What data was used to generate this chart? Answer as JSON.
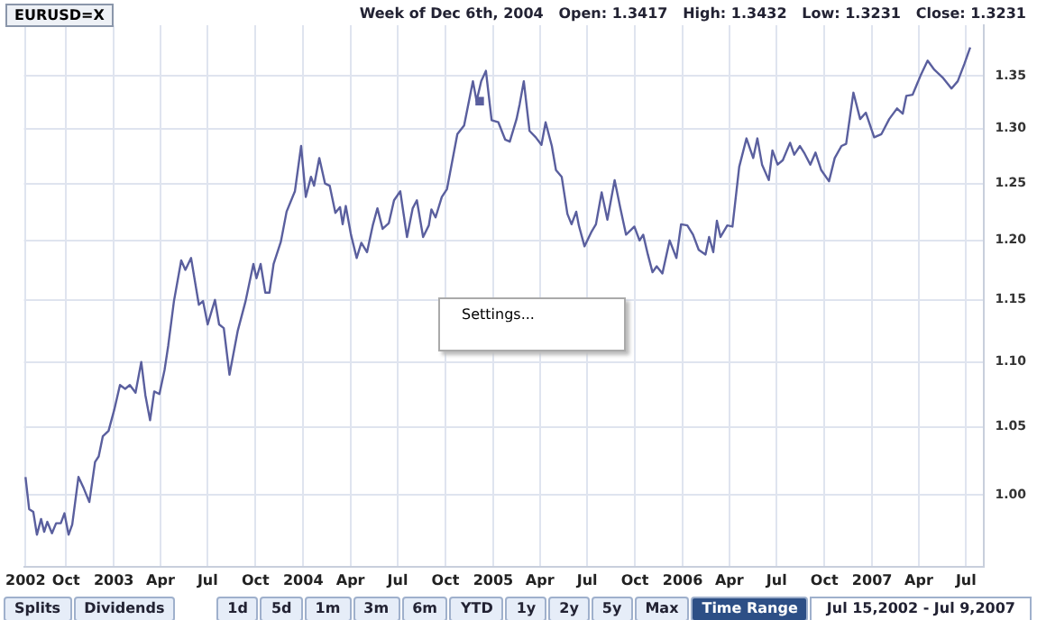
{
  "chart_data": {
    "type": "line",
    "title": "EURUSD=X",
    "x": [
      "2002-07-15",
      "2002-07-22",
      "2002-07-30",
      "2002-08-06",
      "2002-08-14",
      "2002-08-20",
      "2002-08-26",
      "2002-09-04",
      "2002-09-12",
      "2002-09-21",
      "2002-09-28",
      "2002-10-06",
      "2002-10-13",
      "2002-10-25",
      "2002-11-04",
      "2002-11-15",
      "2002-11-26",
      "2002-12-03",
      "2002-12-11",
      "2002-12-22",
      "2003-01-02",
      "2003-01-13",
      "2003-01-23",
      "2003-02-01",
      "2003-02-12",
      "2003-02-23",
      "2003-03-03",
      "2003-03-12",
      "2003-03-20",
      "2003-03-30",
      "2003-04-09",
      "2003-04-16",
      "2003-04-27",
      "2003-05-11",
      "2003-05-19",
      "2003-05-30",
      "2003-06-14",
      "2003-06-22",
      "2003-07-01",
      "2003-07-15",
      "2003-07-23",
      "2003-08-01",
      "2003-08-12",
      "2003-08-28",
      "2003-09-12",
      "2003-09-27",
      "2003-10-03",
      "2003-10-11",
      "2003-10-20",
      "2003-10-28",
      "2003-11-05",
      "2003-11-19",
      "2003-11-30",
      "2003-12-16",
      "2003-12-28",
      "2004-01-06",
      "2004-01-16",
      "2004-01-22",
      "2004-02-01",
      "2004-02-12",
      "2004-02-21",
      "2004-03-03",
      "2004-03-12",
      "2004-03-17",
      "2004-03-23",
      "2004-04-02",
      "2004-04-13",
      "2004-04-22",
      "2004-05-03",
      "2004-05-14",
      "2004-05-23",
      "2004-06-02",
      "2004-06-14",
      "2004-06-24",
      "2004-07-06",
      "2004-07-19",
      "2004-07-30",
      "2004-08-07",
      "2004-08-19",
      "2004-08-30",
      "2004-09-04",
      "2004-09-12",
      "2004-09-24",
      "2004-10-04",
      "2004-10-24",
      "2004-11-06",
      "2004-11-23",
      "2004-11-30",
      "2004-12-09",
      "2004-12-18",
      "2004-12-29",
      "2005-01-11",
      "2005-01-24",
      "2005-02-02",
      "2005-02-15",
      "2005-02-21",
      "2005-03-01",
      "2005-03-12",
      "2005-03-24",
      "2005-04-04",
      "2005-04-12",
      "2005-04-24",
      "2005-05-02",
      "2005-05-13",
      "2005-05-24",
      "2005-06-01",
      "2005-06-10",
      "2005-06-15",
      "2005-06-26",
      "2005-07-10",
      "2005-07-18",
      "2005-07-29",
      "2005-08-09",
      "2005-08-23",
      "2005-09-03",
      "2005-09-14",
      "2005-09-30",
      "2005-10-10",
      "2005-10-17",
      "2005-10-26",
      "2005-11-04",
      "2005-11-12",
      "2005-11-23",
      "2005-12-07",
      "2005-12-20",
      "2005-12-29",
      "2006-01-10",
      "2006-01-21",
      "2006-02-01",
      "2006-02-14",
      "2006-02-21",
      "2006-03-01",
      "2006-03-08",
      "2006-03-15",
      "2006-03-28",
      "2006-04-07",
      "2006-04-20",
      "2006-05-04",
      "2006-05-17",
      "2006-05-25",
      "2006-06-03",
      "2006-06-16",
      "2006-06-23",
      "2006-07-03",
      "2006-07-13",
      "2006-07-27",
      "2006-08-04",
      "2006-08-15",
      "2006-08-24",
      "2006-09-04",
      "2006-09-14",
      "2006-09-25",
      "2006-10-10",
      "2006-10-21",
      "2006-11-03",
      "2006-11-12",
      "2006-11-26",
      "2006-12-09",
      "2006-12-20",
      "2007-01-05",
      "2007-01-19",
      "2007-02-03",
      "2007-02-18",
      "2007-03-01",
      "2007-03-08",
      "2007-03-20",
      "2007-04-04",
      "2007-04-18",
      "2007-05-01",
      "2007-05-18",
      "2007-06-03",
      "2007-06-15",
      "2007-06-28",
      "2007-07-09"
    ],
    "series": [
      {
        "color": "#5a5f9e",
        "values": [
          1.013,
          0.99,
          0.988,
          0.972,
          0.983,
          0.974,
          0.981,
          0.973,
          0.98,
          0.98,
          0.987,
          0.972,
          0.979,
          1.013,
          1.005,
          0.995,
          1.024,
          1.028,
          1.043,
          1.047,
          1.063,
          1.082,
          1.079,
          1.082,
          1.076,
          1.1,
          1.074,
          1.055,
          1.077,
          1.075,
          1.094,
          1.113,
          1.149,
          1.183,
          1.175,
          1.185,
          1.146,
          1.149,
          1.13,
          1.15,
          1.13,
          1.127,
          1.09,
          1.125,
          1.149,
          1.18,
          1.168,
          1.18,
          1.156,
          1.156,
          1.18,
          1.199,
          1.225,
          1.243,
          1.284,
          1.238,
          1.256,
          1.248,
          1.273,
          1.25,
          1.248,
          1.224,
          1.229,
          1.214,
          1.23,
          1.205,
          1.185,
          1.198,
          1.19,
          1.213,
          1.228,
          1.21,
          1.215,
          1.235,
          1.243,
          1.203,
          1.228,
          1.235,
          1.203,
          1.213,
          1.227,
          1.22,
          1.238,
          1.245,
          1.295,
          1.303,
          1.345,
          1.326,
          1.345,
          1.355,
          1.308,
          1.306,
          1.29,
          1.288,
          1.309,
          1.323,
          1.345,
          1.298,
          1.292,
          1.285,
          1.306,
          1.284,
          1.262,
          1.256,
          1.223,
          1.214,
          1.225,
          1.213,
          1.195,
          1.208,
          1.214,
          1.242,
          1.218,
          1.253,
          1.228,
          1.205,
          1.212,
          1.2,
          1.205,
          1.188,
          1.173,
          1.178,
          1.172,
          1.2,
          1.185,
          1.214,
          1.213,
          1.205,
          1.192,
          1.188,
          1.203,
          1.19,
          1.217,
          1.203,
          1.213,
          1.212,
          1.265,
          1.291,
          1.273,
          1.291,
          1.267,
          1.253,
          1.28,
          1.267,
          1.271,
          1.287,
          1.276,
          1.284,
          1.277,
          1.267,
          1.278,
          1.262,
          1.252,
          1.273,
          1.284,
          1.286,
          1.334,
          1.309,
          1.315,
          1.292,
          1.295,
          1.309,
          1.319,
          1.314,
          1.331,
          1.332,
          1.35,
          1.365,
          1.356,
          1.348,
          1.338,
          1.345,
          1.362,
          1.378
        ]
      },
      {
        "type": "scatter",
        "marker": "square",
        "color": "#5a5f9e",
        "x": [
          "2004-12-06"
        ],
        "values": [
          1.326
        ]
      }
    ],
    "xlim": [
      "2002-07-12",
      "2007-08-05"
    ],
    "xticks": [
      {
        "value": "2002-07-15",
        "label": "2002"
      },
      {
        "value": "2002-10-01",
        "label": "Oct"
      },
      {
        "value": "2003-01-01",
        "label": "2003"
      },
      {
        "value": "2003-04-01",
        "label": "Apr"
      },
      {
        "value": "2003-07-01",
        "label": "Jul"
      },
      {
        "value": "2003-10-01",
        "label": "Oct"
      },
      {
        "value": "2004-01-01",
        "label": "2004"
      },
      {
        "value": "2004-04-01",
        "label": "Apr"
      },
      {
        "value": "2004-07-01",
        "label": "Jul"
      },
      {
        "value": "2004-10-01",
        "label": "Oct"
      },
      {
        "value": "2005-01-01",
        "label": "2005"
      },
      {
        "value": "2005-04-01",
        "label": "Apr"
      },
      {
        "value": "2005-07-01",
        "label": "Jul"
      },
      {
        "value": "2005-10-01",
        "label": "Oct"
      },
      {
        "value": "2006-01-01",
        "label": "2006"
      },
      {
        "value": "2006-04-01",
        "label": "Apr"
      },
      {
        "value": "2006-07-01",
        "label": "Jul"
      },
      {
        "value": "2006-10-01",
        "label": "Oct"
      },
      {
        "value": "2007-01-01",
        "label": "2007"
      },
      {
        "value": "2007-04-01",
        "label": "Apr"
      },
      {
        "value": "2007-07-01",
        "label": "Jul"
      }
    ],
    "ylim": [
      0.95,
      1.4
    ],
    "yticks": [
      {
        "value": 1,
        "label": "1.00"
      },
      1.05,
      {
        "value": 1.1,
        "label": "1.10"
      },
      1.15,
      {
        "value": 1.2,
        "label": "1.20"
      },
      1.25,
      {
        "value": 1.3,
        "label": "1.30"
      },
      1.35
    ],
    "log": "y",
    "grid": true,
    "legend": false,
    "marker": "none",
    "line_style": "solid",
    "annotations": [
      "Week of Dec 6th, 2004   Open: 1.3417   High: 1.3432   Low: 1.3231   Close: 1.3231",
      "Settings...",
      "Splits",
      "Dividends",
      "1d",
      "5d",
      "1m",
      "3m",
      "6m",
      "YTD",
      "1y",
      "2y",
      "5y",
      "Max",
      "Time Range",
      "Jul 15,2002 - Jul 9,2007"
    ]
  }
}
